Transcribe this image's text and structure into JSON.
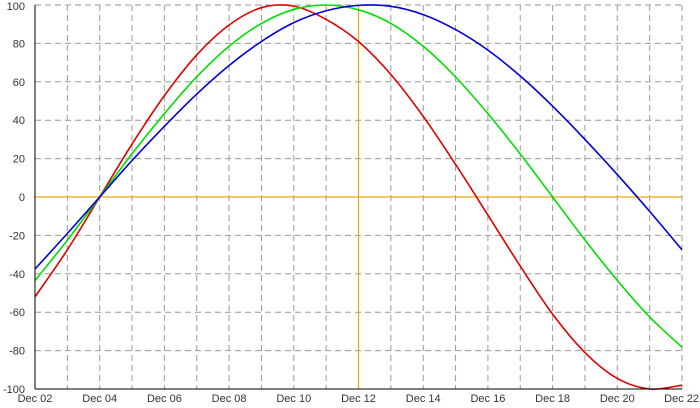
{
  "chart_data": {
    "type": "line",
    "title": "",
    "xlabel": "",
    "ylabel": "",
    "grid": true,
    "x_ticks": [
      "Dec 02",
      "Dec 04",
      "Dec 06",
      "Dec 08",
      "Dec 10",
      "Dec 12",
      "Dec 14",
      "Dec 16",
      "Dec 18",
      "Dec 20",
      "Dec 22"
    ],
    "y_ticks": [
      "100",
      "80",
      "60",
      "40",
      "20",
      "0",
      "-20",
      "-40",
      "-60",
      "-80",
      "-100"
    ],
    "ylim": [
      -100,
      100
    ],
    "xlim": [
      "2011-12-02",
      "2011-12-22"
    ],
    "crosshair": {
      "x": "2011-12-12",
      "y": 0,
      "color": "#e6a817"
    },
    "x": [
      "2011-12-02",
      "2011-12-03",
      "2011-12-04",
      "2011-12-05",
      "2011-12-06",
      "2011-12-07",
      "2011-12-08",
      "2011-12-09",
      "2011-12-10",
      "2011-12-11",
      "2011-12-12",
      "2011-12-13",
      "2011-12-14",
      "2011-12-15",
      "2011-12-16",
      "2011-12-17",
      "2011-12-18",
      "2011-12-19",
      "2011-12-20",
      "2011-12-21",
      "2011-12-22"
    ],
    "series": [
      {
        "color": "#e00000",
        "values": [
          -52.0,
          -27.5,
          0.0,
          27.6,
          52.8,
          74.0,
          89.6,
          98.6,
          99.4,
          92.5,
          81.0,
          63.8,
          42.0,
          17.0,
          -9.4,
          -36.0,
          -61.0,
          -81.0,
          -94.5,
          -100.0,
          -98.0
        ]
      },
      {
        "color": "#00dd00",
        "values": [
          -43.5,
          -22.5,
          0.0,
          22.5,
          43.4,
          62.6,
          78.5,
          90.4,
          97.7,
          100.0,
          97.5,
          90.4,
          78.5,
          62.5,
          43.4,
          22.4,
          0.0,
          -22.4,
          -43.4,
          -62.5,
          -78.2
        ]
      },
      {
        "color": "#0000dd",
        "values": [
          -37.5,
          -19.0,
          0.0,
          19.0,
          36.8,
          53.6,
          68.5,
          81.0,
          90.8,
          97.0,
          99.8,
          99.3,
          95.0,
          87.2,
          76.5,
          63.0,
          47.3,
          30.0,
          11.7,
          -7.5,
          -27.5
        ]
      }
    ]
  }
}
